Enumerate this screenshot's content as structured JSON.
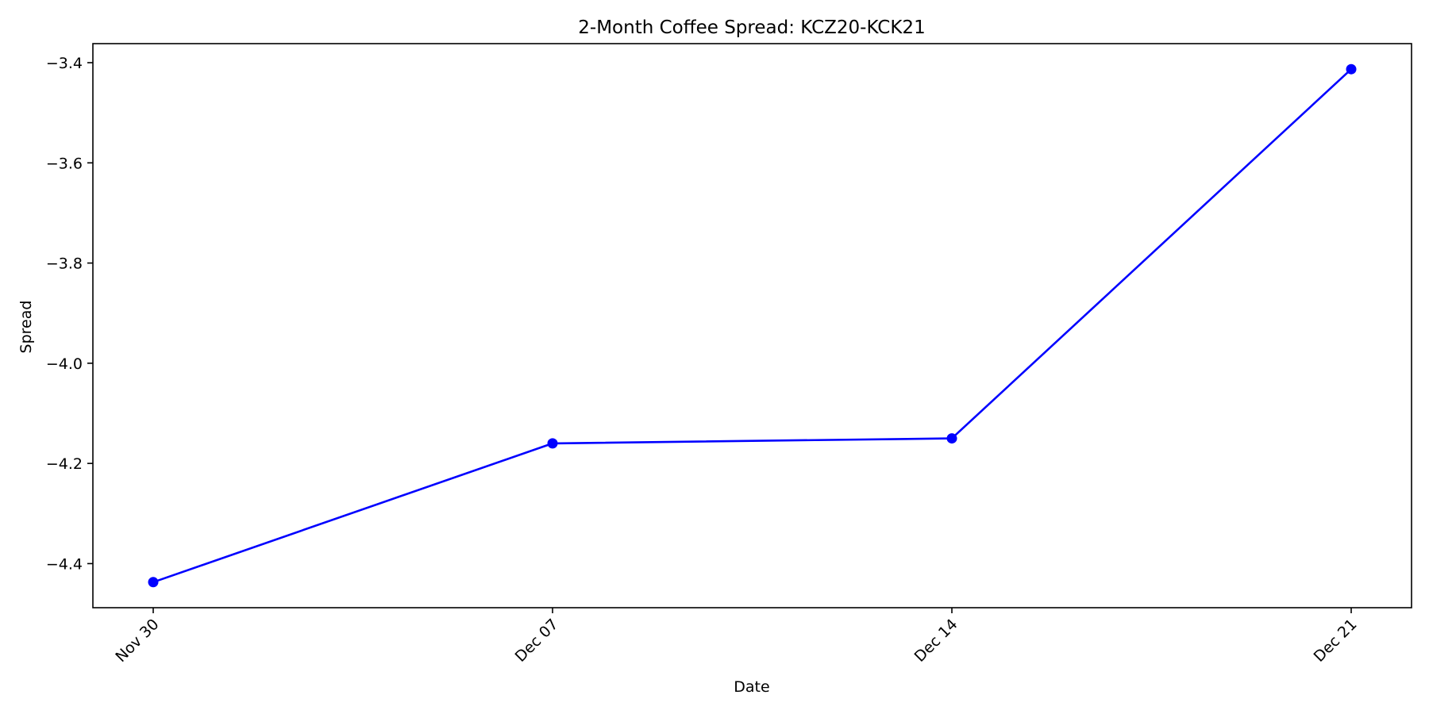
{
  "chart_data": {
    "type": "line",
    "title": "2-Month Coffee Spread: KCZ20-KCK21",
    "xlabel": "Date",
    "ylabel": "Spread",
    "categories": [
      "Nov 30",
      "Dec 07",
      "Dec 14",
      "Dec 21"
    ],
    "series": [
      {
        "values": [
          -4.437,
          -4.16,
          -4.15,
          -3.413
        ],
        "color": "#0000ff",
        "marker": "circle"
      }
    ],
    "yticks": [
      -4.4,
      -4.2,
      -4.0,
      -3.8,
      -3.6,
      -3.4
    ],
    "ytick_labels": [
      "−4.4",
      "−4.2",
      "−4.0",
      "−3.8",
      "−3.6",
      "−3.4"
    ],
    "ylim": [
      -4.488,
      -3.362
    ],
    "grid": false,
    "legend": false
  }
}
